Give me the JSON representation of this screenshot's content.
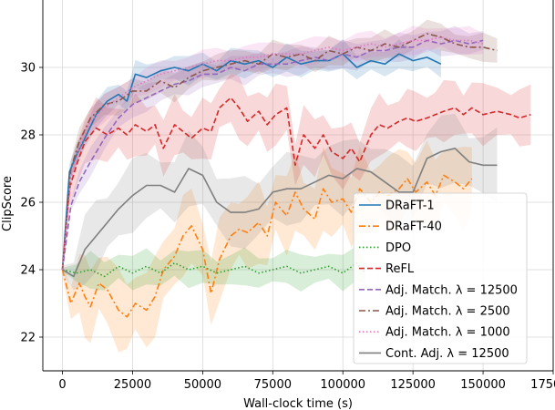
{
  "chart_data": {
    "type": "line",
    "xlabel": "Wall-clock time (s)",
    "ylabel": "ClipScore",
    "xlim": [
      -7000,
      175000
    ],
    "ylim": [
      21.0,
      32.0
    ],
    "xticks": [
      0,
      25000,
      50000,
      75000,
      100000,
      125000,
      150000,
      175000
    ],
    "yticks": [
      22,
      24,
      26,
      28,
      30
    ],
    "grid": true,
    "legend": {
      "placement": "lower-right",
      "entries": [
        "DRaFT-1",
        "DRaFT-40",
        "DPO",
        "ReFL",
        "Adj. Match. λ = 12500",
        "Adj. Match. λ = 2500",
        "Adj. Match. λ = 1000",
        "Cont. Adj. λ = 12500"
      ]
    },
    "series": [
      {
        "name": "DRaFT-1",
        "color": "#1f77b4",
        "dash": "solid",
        "band": 0.35,
        "x": [
          0,
          2500,
          5000,
          8000,
          12000,
          16000,
          20000,
          23000,
          26000,
          30000,
          35000,
          40000,
          45000,
          50000,
          55000,
          60000,
          65000,
          70000,
          75000,
          80000,
          85000,
          90000,
          95000,
          100000,
          105000,
          110000,
          115000,
          120000,
          125000,
          130000,
          135000
        ],
        "y": [
          24.0,
          26.9,
          27.4,
          27.9,
          28.6,
          29.0,
          29.2,
          29.0,
          29.8,
          29.7,
          29.9,
          30.0,
          29.9,
          30.1,
          29.9,
          30.2,
          30.1,
          30.2,
          30.0,
          30.3,
          30.1,
          30.2,
          30.2,
          30.4,
          30.0,
          30.2,
          30.1,
          30.4,
          30.2,
          30.3,
          30.1
        ]
      },
      {
        "name": "DRaFT-40",
        "color": "#ff7f0e",
        "dash": "dashdot",
        "band": 1.0,
        "x": [
          0,
          3000,
          6000,
          8000,
          10000,
          13000,
          16000,
          20000,
          23000,
          26000,
          30000,
          33000,
          36000,
          40000,
          43000,
          46000,
          50000,
          53000,
          56000,
          60000,
          63000,
          66000,
          70000,
          73000,
          76000,
          80000,
          83000,
          86000,
          90000,
          93000,
          96000,
          100000,
          103000,
          106000,
          110000,
          113000,
          116000,
          120000,
          123000,
          126000,
          130000,
          133000,
          136000,
          140000,
          143000,
          146000
        ],
        "y": [
          24.0,
          23.0,
          23.6,
          23.2,
          22.9,
          23.6,
          23.4,
          22.8,
          22.6,
          23.0,
          22.8,
          23.2,
          24.0,
          24.4,
          25.0,
          25.3,
          24.6,
          23.3,
          24.3,
          25.0,
          25.2,
          25.1,
          25.4,
          25.0,
          26.0,
          25.6,
          26.3,
          25.8,
          25.5,
          26.4,
          26.0,
          26.1,
          25.7,
          26.4,
          26.0,
          26.3,
          26.2,
          26.4,
          26.7,
          26.3,
          26.6,
          26.2,
          26.8,
          26.6,
          26.4,
          26.7
        ]
      },
      {
        "name": "DPO",
        "color": "#2ca02c",
        "dash": "dotted",
        "band": 0.45,
        "x": [
          0,
          5000,
          10000,
          15000,
          20000,
          25000,
          30000,
          35000,
          40000,
          45000,
          50000,
          55000,
          60000,
          65000,
          70000,
          75000,
          80000,
          85000,
          90000,
          95000,
          100000,
          105000,
          108000
        ],
        "y": [
          24.0,
          23.9,
          24.0,
          23.8,
          24.1,
          23.9,
          24.1,
          23.9,
          24.2,
          24.0,
          24.1,
          23.9,
          24.0,
          24.1,
          23.9,
          24.0,
          24.1,
          23.9,
          24.0,
          24.1,
          23.9,
          24.2,
          23.9
        ]
      },
      {
        "name": "ReFL",
        "color": "#d62728",
        "dash": "dashed",
        "band": 0.75,
        "x": [
          0,
          2500,
          5000,
          8000,
          12000,
          16000,
          20000,
          23000,
          26000,
          30000,
          33000,
          36000,
          40000,
          43000,
          46000,
          50000,
          53000,
          56000,
          60000,
          63000,
          66000,
          70000,
          73000,
          76000,
          80000,
          83000,
          86000,
          90000,
          93000,
          96000,
          100000,
          103000,
          106000,
          110000,
          113000,
          116000,
          120000,
          123000,
          126000,
          130000,
          133000,
          136000,
          140000,
          143000,
          146000,
          150000,
          155000,
          160000,
          163000,
          167000
        ],
        "y": [
          24.0,
          26.4,
          27.1,
          27.8,
          28.2,
          28.0,
          28.2,
          28.0,
          28.3,
          28.1,
          28.3,
          27.6,
          28.3,
          28.1,
          27.9,
          28.2,
          28.1,
          28.8,
          29.1,
          28.8,
          28.4,
          28.7,
          28.3,
          28.6,
          28.8,
          27.1,
          28.0,
          27.6,
          28.0,
          27.5,
          27.3,
          27.6,
          27.2,
          28.0,
          28.3,
          28.2,
          28.4,
          28.5,
          28.4,
          28.5,
          28.6,
          28.7,
          28.8,
          28.6,
          28.8,
          28.6,
          28.7,
          28.6,
          28.5,
          28.6
        ]
      },
      {
        "name": "Adj. Match. λ = 12500",
        "color": "#9467bd",
        "dash": "dashed",
        "band": 0.35,
        "x": [
          0,
          3000,
          6000,
          10000,
          15000,
          20000,
          25000,
          30000,
          35000,
          40000,
          45000,
          50000,
          55000,
          60000,
          65000,
          70000,
          75000,
          80000,
          85000,
          90000,
          95000,
          100000,
          105000,
          110000,
          115000,
          120000,
          125000,
          130000,
          135000,
          140000,
          145000,
          150000
        ],
        "y": [
          24.0,
          25.9,
          26.6,
          27.2,
          27.9,
          28.5,
          28.9,
          29.1,
          29.3,
          29.5,
          29.6,
          29.8,
          29.8,
          30.0,
          29.9,
          30.1,
          30.1,
          30.1,
          30.2,
          30.3,
          30.2,
          30.4,
          30.3,
          30.5,
          30.5,
          30.6,
          30.6,
          30.8,
          30.7,
          30.8,
          30.7,
          30.8
        ]
      },
      {
        "name": "Adj. Match. λ = 2500",
        "color": "#8c564b",
        "dash": "dashdot",
        "band": 0.35,
        "x": [
          0,
          3000,
          6000,
          10000,
          15000,
          20000,
          25000,
          30000,
          35000,
          40000,
          45000,
          50000,
          55000,
          60000,
          65000,
          70000,
          75000,
          80000,
          85000,
          90000,
          95000,
          100000,
          105000,
          110000,
          115000,
          120000,
          125000,
          130000,
          135000,
          140000,
          145000,
          150000,
          155000
        ],
        "y": [
          24.0,
          27.0,
          27.8,
          28.5,
          28.9,
          29.0,
          29.3,
          29.3,
          29.6,
          29.4,
          29.7,
          29.9,
          30.0,
          30.1,
          30.2,
          30.1,
          30.4,
          30.3,
          30.4,
          30.2,
          30.5,
          30.4,
          30.6,
          30.5,
          30.7,
          30.6,
          30.8,
          31.0,
          30.9,
          30.7,
          30.6,
          30.6,
          30.5
        ]
      },
      {
        "name": "Adj. Match. λ = 1000",
        "color": "#e377c2",
        "dash": "dotted",
        "band": 0.35,
        "x": [
          0,
          3000,
          6000,
          10000,
          15000,
          20000,
          25000,
          30000,
          35000,
          40000,
          45000,
          50000,
          55000,
          60000,
          65000,
          70000,
          75000,
          80000,
          85000,
          90000,
          95000,
          100000,
          105000,
          110000,
          115000,
          120000,
          125000,
          130000,
          135000,
          140000,
          145000,
          150000
        ],
        "y": [
          24.0,
          26.7,
          27.6,
          28.4,
          28.8,
          29.1,
          29.4,
          29.6,
          29.8,
          29.9,
          30.0,
          30.1,
          30.2,
          30.2,
          30.3,
          30.3,
          30.4,
          30.4,
          30.4,
          30.5,
          30.6,
          30.5,
          30.6,
          30.7,
          30.6,
          30.7,
          30.8,
          30.8,
          30.9,
          30.8,
          30.8,
          30.7
        ]
      },
      {
        "name": "Cont. Adj. λ = 12500",
        "color": "#7f7f7f",
        "dash": "solid",
        "band": 0.9,
        "x": [
          0,
          4000,
          8000,
          12000,
          16000,
          20000,
          25000,
          30000,
          35000,
          40000,
          45000,
          50000,
          55000,
          60000,
          65000,
          70000,
          75000,
          80000,
          85000,
          90000,
          95000,
          100000,
          105000,
          110000,
          115000,
          120000,
          125000,
          130000,
          135000,
          140000,
          145000,
          150000,
          155000
        ],
        "y": [
          24.0,
          23.8,
          24.6,
          25.0,
          25.4,
          25.8,
          26.2,
          26.5,
          26.5,
          26.3,
          27.0,
          26.8,
          26.0,
          25.7,
          25.7,
          25.8,
          26.3,
          26.4,
          26.4,
          26.6,
          26.8,
          26.7,
          27.0,
          26.9,
          26.6,
          26.3,
          26.3,
          27.3,
          27.5,
          27.6,
          27.2,
          27.1,
          27.1
        ]
      }
    ]
  }
}
